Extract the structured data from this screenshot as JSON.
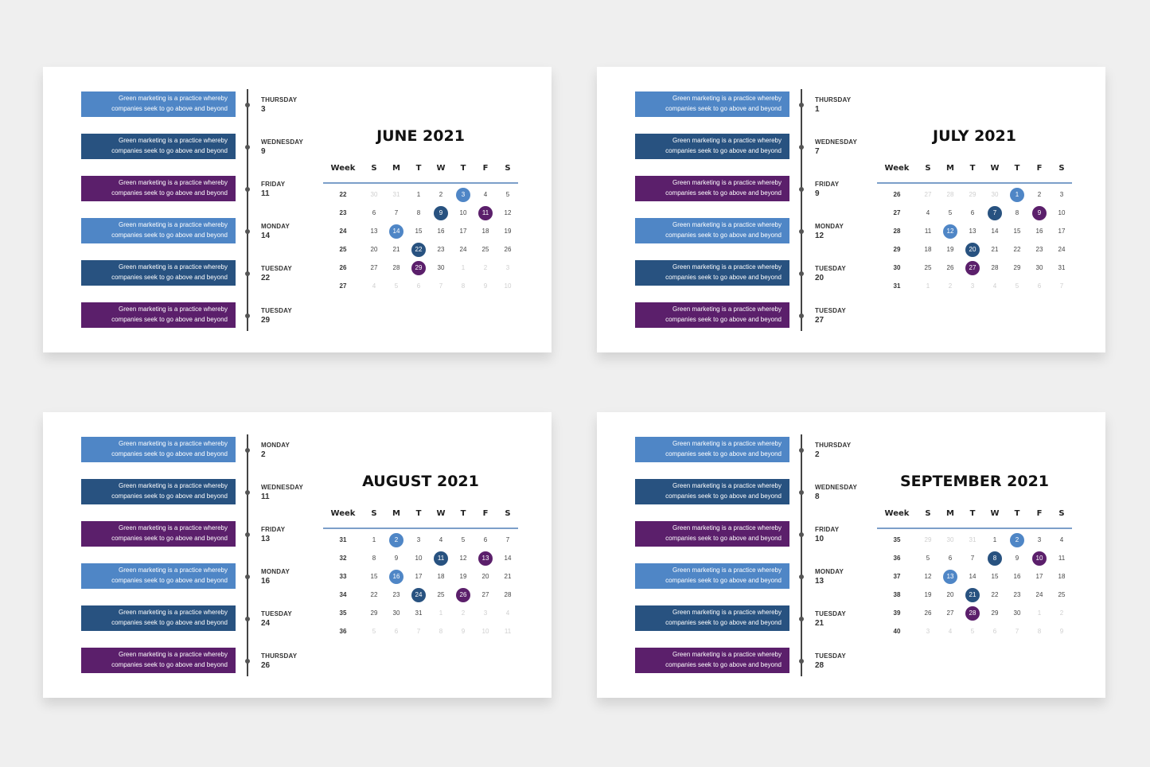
{
  "weekday_header": [
    "Week",
    "S",
    "M",
    "T",
    "W",
    "T",
    "F",
    "S"
  ],
  "slides": [
    {
      "title": "JUNE 2021",
      "events": [
        {
          "text": "Green marketing is a practice whereby companies seek to go above and beyond",
          "color": "#4f86c6",
          "weekday": "THURSDAY",
          "date": "3"
        },
        {
          "text": "Green marketing is a practice whereby companies seek to go above and beyond",
          "color": "#285280",
          "weekday": "WEDNESDAY",
          "date": "9"
        },
        {
          "text": "Green marketing is a practice whereby companies seek to go above and beyond",
          "color": "#5b1f6b",
          "weekday": "FRIDAY",
          "date": "11"
        },
        {
          "text": "Green marketing is a practice whereby companies seek to go above and beyond",
          "color": "#4f86c6",
          "weekday": "MONDAY",
          "date": "14"
        },
        {
          "text": "Green marketing is a practice whereby companies seek to go above and beyond",
          "color": "#285280",
          "weekday": "TUESDAY",
          "date": "22"
        },
        {
          "text": "Green marketing is a practice whereby companies seek to go above and beyond",
          "color": "#5b1f6b",
          "weekday": "TUESDAY",
          "date": "29"
        }
      ],
      "weeks": [
        {
          "week": "22",
          "days": [
            {
              "day": "30",
              "muted": true
            },
            {
              "day": "31",
              "muted": true
            },
            {
              "day": "1"
            },
            {
              "day": "2"
            },
            {
              "day": "3",
              "fill": "#4f86c6"
            },
            {
              "day": "4"
            },
            {
              "day": "5"
            }
          ]
        },
        {
          "week": "23",
          "days": [
            {
              "day": "6"
            },
            {
              "day": "7"
            },
            {
              "day": "8"
            },
            {
              "day": "9",
              "fill": "#285280"
            },
            {
              "day": "10"
            },
            {
              "day": "11",
              "fill": "#5b1f6b"
            },
            {
              "day": "12"
            }
          ]
        },
        {
          "week": "24",
          "days": [
            {
              "day": "13"
            },
            {
              "day": "14",
              "fill": "#4f86c6"
            },
            {
              "day": "15"
            },
            {
              "day": "16"
            },
            {
              "day": "17"
            },
            {
              "day": "18"
            },
            {
              "day": "19"
            }
          ]
        },
        {
          "week": "25",
          "days": [
            {
              "day": "20"
            },
            {
              "day": "21"
            },
            {
              "day": "22",
              "fill": "#285280"
            },
            {
              "day": "23"
            },
            {
              "day": "24"
            },
            {
              "day": "25"
            },
            {
              "day": "26"
            }
          ]
        },
        {
          "week": "26",
          "days": [
            {
              "day": "27"
            },
            {
              "day": "28"
            },
            {
              "day": "29",
              "fill": "#5b1f6b"
            },
            {
              "day": "30"
            },
            {
              "day": "1",
              "muted": true
            },
            {
              "day": "2",
              "muted": true
            },
            {
              "day": "3",
              "muted": true
            }
          ]
        },
        {
          "week": "27",
          "days": [
            {
              "day": "4",
              "muted": true
            },
            {
              "day": "5",
              "muted": true
            },
            {
              "day": "6",
              "muted": true
            },
            {
              "day": "7",
              "muted": true
            },
            {
              "day": "8",
              "muted": true
            },
            {
              "day": "9",
              "muted": true
            },
            {
              "day": "10",
              "muted": true
            }
          ]
        }
      ]
    },
    {
      "title": "JULY 2021",
      "events": [
        {
          "text": "Green marketing is a practice whereby companies seek to go above and beyond",
          "color": "#4f86c6",
          "weekday": "THURSDAY",
          "date": "1"
        },
        {
          "text": "Green marketing is a practice whereby companies seek to go above and beyond",
          "color": "#285280",
          "weekday": "WEDNESDAY",
          "date": "7"
        },
        {
          "text": "Green marketing is a practice whereby companies seek to go above and beyond",
          "color": "#5b1f6b",
          "weekday": "FRIDAY",
          "date": "9"
        },
        {
          "text": "Green marketing is a practice whereby companies seek to go above and beyond",
          "color": "#4f86c6",
          "weekday": "MONDAY",
          "date": "12"
        },
        {
          "text": "Green marketing is a practice whereby companies seek to go above and beyond",
          "color": "#285280",
          "weekday": "TUESDAY",
          "date": "20"
        },
        {
          "text": "Green marketing is a practice whereby companies seek to go above and beyond",
          "color": "#5b1f6b",
          "weekday": "TUESDAY",
          "date": "27"
        }
      ],
      "weeks": [
        {
          "week": "26",
          "days": [
            {
              "day": "27",
              "muted": true
            },
            {
              "day": "28",
              "muted": true
            },
            {
              "day": "29",
              "muted": true
            },
            {
              "day": "30",
              "muted": true
            },
            {
              "day": "1",
              "fill": "#4f86c6"
            },
            {
              "day": "2"
            },
            {
              "day": "3"
            }
          ]
        },
        {
          "week": "27",
          "days": [
            {
              "day": "4"
            },
            {
              "day": "5"
            },
            {
              "day": "6"
            },
            {
              "day": "7",
              "fill": "#285280"
            },
            {
              "day": "8"
            },
            {
              "day": "9",
              "fill": "#5b1f6b"
            },
            {
              "day": "10"
            }
          ]
        },
        {
          "week": "28",
          "days": [
            {
              "day": "11"
            },
            {
              "day": "12",
              "fill": "#4f86c6"
            },
            {
              "day": "13"
            },
            {
              "day": "14"
            },
            {
              "day": "15"
            },
            {
              "day": "16"
            },
            {
              "day": "17"
            }
          ]
        },
        {
          "week": "29",
          "days": [
            {
              "day": "18"
            },
            {
              "day": "19"
            },
            {
              "day": "20",
              "fill": "#285280"
            },
            {
              "day": "21"
            },
            {
              "day": "22"
            },
            {
              "day": "23"
            },
            {
              "day": "24"
            }
          ]
        },
        {
          "week": "30",
          "days": [
            {
              "day": "25"
            },
            {
              "day": "26"
            },
            {
              "day": "27",
              "fill": "#5b1f6b"
            },
            {
              "day": "28"
            },
            {
              "day": "29"
            },
            {
              "day": "30"
            },
            {
              "day": "31"
            }
          ]
        },
        {
          "week": "31",
          "days": [
            {
              "day": "1",
              "muted": true
            },
            {
              "day": "2",
              "muted": true
            },
            {
              "day": "3",
              "muted": true
            },
            {
              "day": "4",
              "muted": true
            },
            {
              "day": "5",
              "muted": true
            },
            {
              "day": "6",
              "muted": true
            },
            {
              "day": "7",
              "muted": true
            }
          ]
        }
      ]
    },
    {
      "title": "AUGUST 2021",
      "events": [
        {
          "text": "Green marketing is a practice whereby companies seek to go above and beyond",
          "color": "#4f86c6",
          "weekday": "MONDAY",
          "date": "2"
        },
        {
          "text": "Green marketing is a practice whereby companies seek to go above and beyond",
          "color": "#285280",
          "weekday": "WEDNESDAY",
          "date": "11"
        },
        {
          "text": "Green marketing is a practice whereby companies seek to go above and beyond",
          "color": "#5b1f6b",
          "weekday": "FRIDAY",
          "date": "13"
        },
        {
          "text": "Green marketing is a practice whereby companies seek to go above and beyond",
          "color": "#4f86c6",
          "weekday": "MONDAY",
          "date": "16"
        },
        {
          "text": "Green marketing is a practice whereby companies seek to go above and beyond",
          "color": "#285280",
          "weekday": "TUESDAY",
          "date": "24"
        },
        {
          "text": "Green marketing is a practice whereby companies seek to go above and beyond",
          "color": "#5b1f6b",
          "weekday": "THURSDAY",
          "date": "26"
        }
      ],
      "weeks": [
        {
          "week": "31",
          "days": [
            {
              "day": "1"
            },
            {
              "day": "2",
              "fill": "#4f86c6"
            },
            {
              "day": "3"
            },
            {
              "day": "4"
            },
            {
              "day": "5"
            },
            {
              "day": "6"
            },
            {
              "day": "7"
            }
          ]
        },
        {
          "week": "32",
          "days": [
            {
              "day": "8"
            },
            {
              "day": "9"
            },
            {
              "day": "10"
            },
            {
              "day": "11",
              "fill": "#285280"
            },
            {
              "day": "12"
            },
            {
              "day": "13",
              "fill": "#5b1f6b"
            },
            {
              "day": "14"
            }
          ]
        },
        {
          "week": "33",
          "days": [
            {
              "day": "15"
            },
            {
              "day": "16",
              "fill": "#4f86c6"
            },
            {
              "day": "17"
            },
            {
              "day": "18"
            },
            {
              "day": "19"
            },
            {
              "day": "20"
            },
            {
              "day": "21"
            }
          ]
        },
        {
          "week": "34",
          "days": [
            {
              "day": "22"
            },
            {
              "day": "23"
            },
            {
              "day": "24",
              "fill": "#285280"
            },
            {
              "day": "25"
            },
            {
              "day": "26",
              "fill": "#5b1f6b"
            },
            {
              "day": "27"
            },
            {
              "day": "28"
            }
          ]
        },
        {
          "week": "35",
          "days": [
            {
              "day": "29"
            },
            {
              "day": "30"
            },
            {
              "day": "31"
            },
            {
              "day": "1",
              "muted": true
            },
            {
              "day": "2",
              "muted": true
            },
            {
              "day": "3",
              "muted": true
            },
            {
              "day": "4",
              "muted": true
            }
          ]
        },
        {
          "week": "36",
          "days": [
            {
              "day": "5",
              "muted": true
            },
            {
              "day": "6",
              "muted": true
            },
            {
              "day": "7",
              "muted": true
            },
            {
              "day": "8",
              "muted": true
            },
            {
              "day": "9",
              "muted": true
            },
            {
              "day": "10",
              "muted": true
            },
            {
              "day": "11",
              "muted": true
            }
          ]
        }
      ]
    },
    {
      "title": "SEPTEMBER 2021",
      "events": [
        {
          "text": "Green marketing is a practice whereby companies seek to go above and beyond",
          "color": "#4f86c6",
          "weekday": "THURSDAY",
          "date": "2"
        },
        {
          "text": "Green marketing is a practice whereby companies seek to go above and beyond",
          "color": "#285280",
          "weekday": "WEDNESDAY",
          "date": "8"
        },
        {
          "text": "Green marketing is a practice whereby companies seek to go above and beyond",
          "color": "#5b1f6b",
          "weekday": "FRIDAY",
          "date": "10"
        },
        {
          "text": "Green marketing is a practice whereby companies seek to go above and beyond",
          "color": "#4f86c6",
          "weekday": "MONDAY",
          "date": "13"
        },
        {
          "text": "Green marketing is a practice whereby companies seek to go above and beyond",
          "color": "#285280",
          "weekday": "TUESDAY",
          "date": "21"
        },
        {
          "text": "Green marketing is a practice whereby companies seek to go above and beyond",
          "color": "#5b1f6b",
          "weekday": "TUESDAY",
          "date": "28"
        }
      ],
      "weeks": [
        {
          "week": "35",
          "days": [
            {
              "day": "29",
              "muted": true
            },
            {
              "day": "30",
              "muted": true
            },
            {
              "day": "31",
              "muted": true
            },
            {
              "day": "1"
            },
            {
              "day": "2",
              "fill": "#4f86c6"
            },
            {
              "day": "3"
            },
            {
              "day": "4"
            }
          ]
        },
        {
          "week": "36",
          "days": [
            {
              "day": "5"
            },
            {
              "day": "6"
            },
            {
              "day": "7"
            },
            {
              "day": "8",
              "fill": "#285280"
            },
            {
              "day": "9"
            },
            {
              "day": "10",
              "fill": "#5b1f6b"
            },
            {
              "day": "11"
            }
          ]
        },
        {
          "week": "37",
          "days": [
            {
              "day": "12"
            },
            {
              "day": "13",
              "fill": "#4f86c6"
            },
            {
              "day": "14"
            },
            {
              "day": "15"
            },
            {
              "day": "16"
            },
            {
              "day": "17"
            },
            {
              "day": "18"
            }
          ]
        },
        {
          "week": "38",
          "days": [
            {
              "day": "19"
            },
            {
              "day": "20"
            },
            {
              "day": "21",
              "fill": "#285280"
            },
            {
              "day": "22"
            },
            {
              "day": "23"
            },
            {
              "day": "24"
            },
            {
              "day": "25"
            }
          ]
        },
        {
          "week": "39",
          "days": [
            {
              "day": "26"
            },
            {
              "day": "27"
            },
            {
              "day": "28",
              "fill": "#5b1f6b"
            },
            {
              "day": "29"
            },
            {
              "day": "30"
            },
            {
              "day": "1",
              "muted": true
            },
            {
              "day": "2",
              "muted": true
            }
          ]
        },
        {
          "week": "40",
          "days": [
            {
              "day": "3",
              "muted": true
            },
            {
              "day": "4",
              "muted": true
            },
            {
              "day": "5",
              "muted": true
            },
            {
              "day": "6",
              "muted": true
            },
            {
              "day": "7",
              "muted": true
            },
            {
              "day": "8",
              "muted": true
            },
            {
              "day": "9",
              "muted": true
            }
          ]
        }
      ]
    }
  ]
}
